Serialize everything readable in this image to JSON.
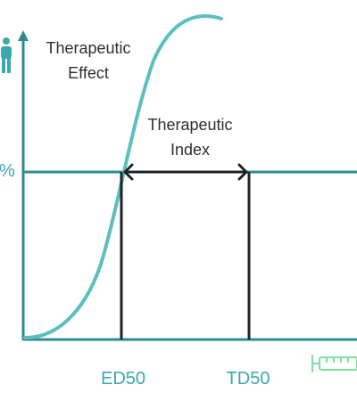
{
  "labels": {
    "effect_line1": "Therapeutic",
    "effect_line2": "Effect",
    "index_line1": "Therapeutic",
    "index_line2": "Index",
    "percent": "%",
    "ed50": "ED50",
    "td50": "TD50"
  },
  "icons": {
    "person": "person-icon",
    "syringe": "syringe-icon"
  },
  "colors": {
    "teal": "#3aa8ad",
    "teal_line": "#2f8c8e",
    "dark": "#1f2326",
    "syringe": "#7ddfa0"
  }
}
